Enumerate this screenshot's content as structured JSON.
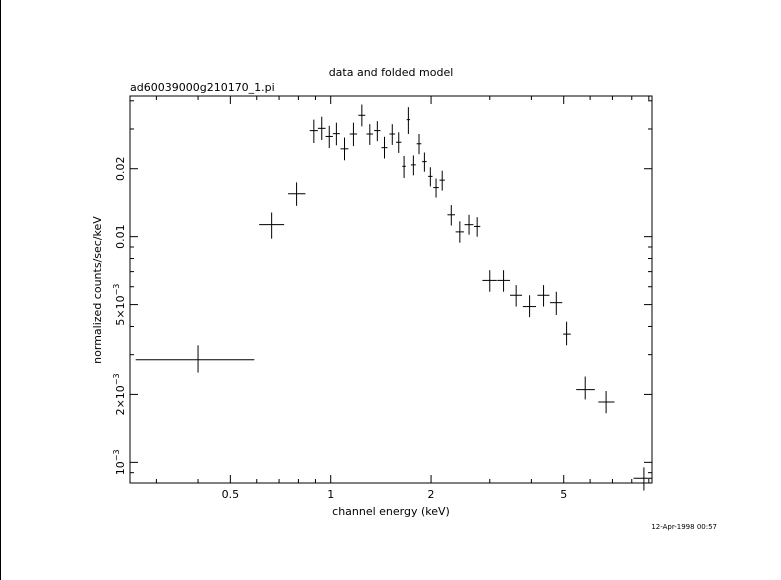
{
  "chart_data": {
    "type": "scatter",
    "title": "data and folded model",
    "subtitle": "ad60039000g210170_1.pi",
    "xlabel": "channel energy (keV)",
    "ylabel": "normalized counts/sec/keV",
    "timestamp": "12-Apr-1998 00:57",
    "x_scale": "log",
    "y_scale": "log",
    "xlim": [
      0.25,
      9.2
    ],
    "ylim": [
      0.00081,
      0.042
    ],
    "x_ticks": [
      {
        "value": 0.5,
        "label": "0.5"
      },
      {
        "value": 1,
        "label": "1"
      },
      {
        "value": 2,
        "label": "2"
      },
      {
        "value": 5,
        "label": "5"
      }
    ],
    "y_ticks": [
      {
        "value": 0.001,
        "label": "10",
        "sup": "−3"
      },
      {
        "value": 0.002,
        "label": "2×10",
        "sup": "−3"
      },
      {
        "value": 0.005,
        "label": "5×10",
        "sup": "−3"
      },
      {
        "value": 0.01,
        "label": "0.01",
        "sup": ""
      },
      {
        "value": 0.02,
        "label": "0.02",
        "sup": ""
      }
    ],
    "grid": false,
    "colors": {
      "data": "#000000",
      "frame": "#000000",
      "background": "#ffffff"
    },
    "series": [
      {
        "points": [
          {
            "x": 0.4,
            "xlo": 0.26,
            "xhi": 0.59,
            "y": 0.00285,
            "ylo": 0.0025,
            "yhi": 0.0033
          },
          {
            "x": 0.665,
            "xlo": 0.61,
            "xhi": 0.725,
            "y": 0.0113,
            "ylo": 0.0098,
            "yhi": 0.0128
          },
          {
            "x": 0.79,
            "xlo": 0.745,
            "xhi": 0.84,
            "y": 0.0155,
            "ylo": 0.0137,
            "yhi": 0.0174
          },
          {
            "x": 0.89,
            "xlo": 0.865,
            "xhi": 0.915,
            "y": 0.0295,
            "ylo": 0.026,
            "yhi": 0.033
          },
          {
            "x": 0.94,
            "xlo": 0.915,
            "xhi": 0.965,
            "y": 0.0302,
            "ylo": 0.0268,
            "yhi": 0.034
          },
          {
            "x": 0.99,
            "xlo": 0.965,
            "xhi": 1.015,
            "y": 0.0278,
            "ylo": 0.0247,
            "yhi": 0.031
          },
          {
            "x": 1.04,
            "xlo": 1.015,
            "xhi": 1.065,
            "y": 0.0286,
            "ylo": 0.0254,
            "yhi": 0.032
          },
          {
            "x": 1.1,
            "xlo": 1.07,
            "xhi": 1.13,
            "y": 0.0245,
            "ylo": 0.0218,
            "yhi": 0.0275
          },
          {
            "x": 1.17,
            "xlo": 1.14,
            "xhi": 1.2,
            "y": 0.0285,
            "ylo": 0.0252,
            "yhi": 0.032
          },
          {
            "x": 1.24,
            "xlo": 1.21,
            "xhi": 1.27,
            "y": 0.0345,
            "ylo": 0.0308,
            "yhi": 0.0385
          },
          {
            "x": 1.31,
            "xlo": 1.28,
            "xhi": 1.34,
            "y": 0.0285,
            "ylo": 0.0255,
            "yhi": 0.0315
          },
          {
            "x": 1.38,
            "xlo": 1.35,
            "xhi": 1.41,
            "y": 0.0295,
            "ylo": 0.0265,
            "yhi": 0.0325
          },
          {
            "x": 1.45,
            "xlo": 1.42,
            "xhi": 1.48,
            "y": 0.0248,
            "ylo": 0.0222,
            "yhi": 0.0277
          },
          {
            "x": 1.53,
            "xlo": 1.5,
            "xhi": 1.56,
            "y": 0.0285,
            "ylo": 0.0255,
            "yhi": 0.0315
          },
          {
            "x": 1.6,
            "xlo": 1.57,
            "xhi": 1.63,
            "y": 0.0262,
            "ylo": 0.0235,
            "yhi": 0.029
          },
          {
            "x": 1.66,
            "xlo": 1.64,
            "xhi": 1.68,
            "y": 0.0205,
            "ylo": 0.0182,
            "yhi": 0.0228
          },
          {
            "x": 1.71,
            "xlo": 1.69,
            "xhi": 1.73,
            "y": 0.033,
            "ylo": 0.0285,
            "yhi": 0.0375
          },
          {
            "x": 1.77,
            "xlo": 1.74,
            "xhi": 1.8,
            "y": 0.0208,
            "ylo": 0.0187,
            "yhi": 0.0229
          },
          {
            "x": 1.84,
            "xlo": 1.81,
            "xhi": 1.87,
            "y": 0.0258,
            "ylo": 0.0232,
            "yhi": 0.0285
          },
          {
            "x": 1.91,
            "xlo": 1.88,
            "xhi": 1.94,
            "y": 0.0215,
            "ylo": 0.0194,
            "yhi": 0.0236
          },
          {
            "x": 1.99,
            "xlo": 1.96,
            "xhi": 2.02,
            "y": 0.0185,
            "ylo": 0.0167,
            "yhi": 0.0203
          },
          {
            "x": 2.07,
            "xlo": 2.03,
            "xhi": 2.11,
            "y": 0.0165,
            "ylo": 0.0149,
            "yhi": 0.0181
          },
          {
            "x": 2.16,
            "xlo": 2.12,
            "xhi": 2.2,
            "y": 0.0178,
            "ylo": 0.016,
            "yhi": 0.0196
          },
          {
            "x": 2.3,
            "xlo": 2.24,
            "xhi": 2.36,
            "y": 0.0125,
            "ylo": 0.0112,
            "yhi": 0.0138
          },
          {
            "x": 2.44,
            "xlo": 2.37,
            "xhi": 2.51,
            "y": 0.0105,
            "ylo": 0.0094,
            "yhi": 0.0117
          },
          {
            "x": 2.6,
            "xlo": 2.52,
            "xhi": 2.68,
            "y": 0.0113,
            "ylo": 0.0102,
            "yhi": 0.0125
          },
          {
            "x": 2.75,
            "xlo": 2.69,
            "xhi": 2.81,
            "y": 0.0111,
            "ylo": 0.01,
            "yhi": 0.0122
          },
          {
            "x": 3.0,
            "xlo": 2.85,
            "xhi": 3.15,
            "y": 0.0064,
            "ylo": 0.0057,
            "yhi": 0.0071
          },
          {
            "x": 3.3,
            "xlo": 3.16,
            "xhi": 3.45,
            "y": 0.0064,
            "ylo": 0.0057,
            "yhi": 0.0071
          },
          {
            "x": 3.6,
            "xlo": 3.45,
            "xhi": 3.75,
            "y": 0.0055,
            "ylo": 0.0049,
            "yhi": 0.0061
          },
          {
            "x": 3.95,
            "xlo": 3.77,
            "xhi": 4.13,
            "y": 0.0049,
            "ylo": 0.0044,
            "yhi": 0.0055
          },
          {
            "x": 4.35,
            "xlo": 4.17,
            "xhi": 4.53,
            "y": 0.0055,
            "ylo": 0.0049,
            "yhi": 0.0061
          },
          {
            "x": 4.75,
            "xlo": 4.55,
            "xhi": 4.95,
            "y": 0.0051,
            "ylo": 0.0045,
            "yhi": 0.0057
          },
          {
            "x": 5.1,
            "xlo": 4.98,
            "xhi": 5.25,
            "y": 0.0037,
            "ylo": 0.0033,
            "yhi": 0.0042
          },
          {
            "x": 5.8,
            "xlo": 5.45,
            "xhi": 6.2,
            "y": 0.0021,
            "ylo": 0.0019,
            "yhi": 0.0024
          },
          {
            "x": 6.7,
            "xlo": 6.35,
            "xhi": 7.1,
            "y": 0.00185,
            "ylo": 0.00165,
            "yhi": 0.00207
          },
          {
            "x": 8.7,
            "xlo": 8.1,
            "xhi": 9.2,
            "y": 0.00085,
            "ylo": 0.00075,
            "yhi": 0.00095
          }
        ]
      }
    ]
  }
}
